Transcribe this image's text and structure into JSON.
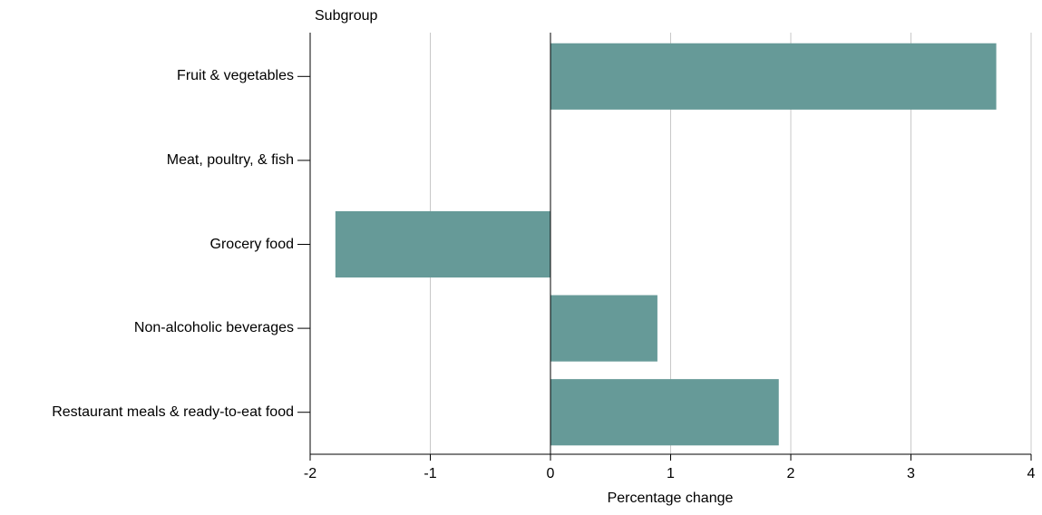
{
  "chart_data": {
    "type": "bar",
    "orientation": "horizontal",
    "y_axis_label": "Subgroup",
    "x_axis_label": "Percentage change",
    "categories": [
      "Fruit & vegetables",
      "Meat, poultry, & fish",
      "Grocery food",
      "Non-alcoholic beverages",
      "Restaurant meals & ready-to-eat food"
    ],
    "values": [
      3.71,
      0,
      -1.79,
      0.89,
      1.9
    ],
    "color": "#669a98",
    "xlim": [
      -2,
      4
    ],
    "xticks": [
      -2,
      -1,
      0,
      1,
      2,
      3,
      4
    ],
    "grid": true
  }
}
